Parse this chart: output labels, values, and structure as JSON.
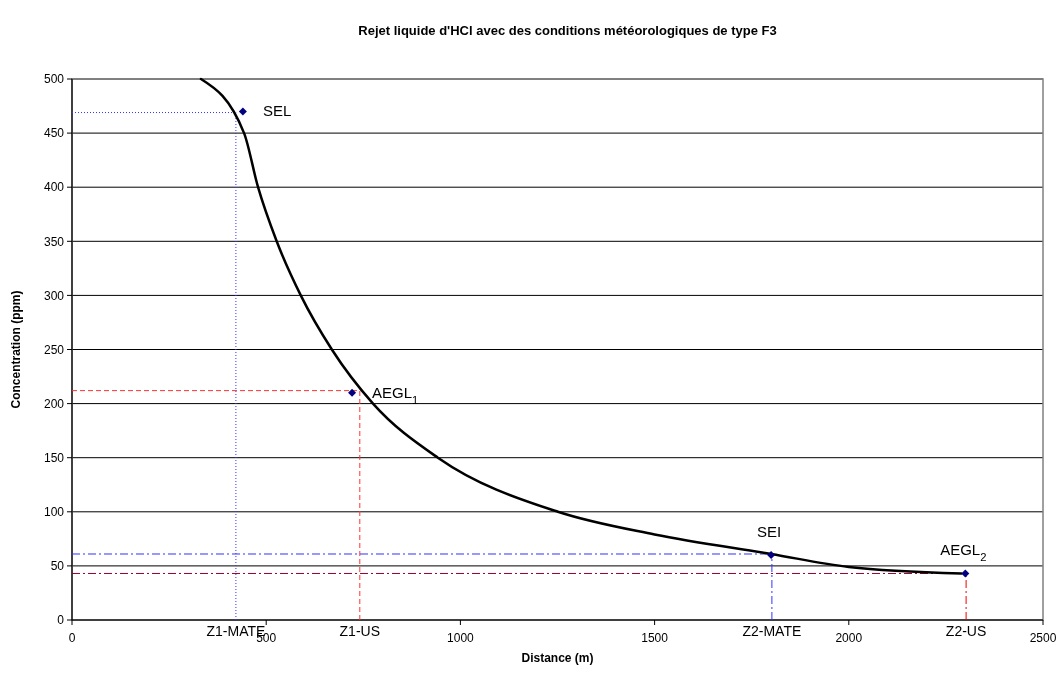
{
  "chart_data": {
    "type": "line",
    "title": "Rejet liquide d'HCl avec des conditions météorologiques de type F3",
    "xlabel": "Distance (m)",
    "ylabel": "Concentration (ppm)",
    "xlim": [
      0,
      2500
    ],
    "xticks": [
      0,
      500,
      1000,
      1500,
      2000,
      2500
    ],
    "ylim": [
      0,
      500
    ],
    "yticks": [
      0,
      50,
      100,
      150,
      200,
      250,
      300,
      350,
      400,
      450,
      500
    ],
    "grid": "y",
    "series": [
      {
        "color": "#000000",
        "line_style": "solid",
        "marker": "none",
        "x": [
          332,
          443,
          479,
          527,
          589,
          669,
          775,
          942,
          1251,
          1500,
          1800,
          2000,
          2290
        ],
        "values": [
          500,
          450,
          400,
          350,
          300,
          250,
          200,
          150,
          100,
          79,
          61,
          49,
          43
        ]
      },
      {
        "type": "scatter",
        "color": "#000080",
        "marker": "diamond",
        "x": [
          440,
          721,
          1800,
          2300
        ],
        "values": [
          470,
          210,
          60,
          43
        ]
      }
    ],
    "ref_lines": [
      {
        "axis": "x",
        "value": 422,
        "label": "Z1-MATE",
        "color": "#3333ff",
        "line_style": "dotted"
      },
      {
        "axis": "y",
        "value": 469,
        "color": "#3333ff",
        "line_style": "dotted"
      },
      {
        "axis": "x",
        "value": 741,
        "label": "Z1-US",
        "color": "#ff3333",
        "line_style": "dashed"
      },
      {
        "axis": "y",
        "value": 212,
        "color": "#ff3333",
        "line_style": "dashed"
      },
      {
        "axis": "x",
        "value": 1802,
        "label": "Z2-MATE",
        "color": "#3333ff",
        "line_style": "dashdot"
      },
      {
        "axis": "y",
        "value": 61,
        "color": "#3333ff",
        "line_style": "dashdot"
      },
      {
        "axis": "x",
        "value": 2302,
        "label": "Z2-US",
        "color": "#ee0000",
        "line_style": "dashdot"
      },
      {
        "axis": "y",
        "value": 43,
        "color": "#990033",
        "line_style": "dashdot"
      }
    ],
    "annotations": [
      {
        "text": "SEL",
        "x": 440,
        "y": 470
      },
      {
        "text": "AEGL$_{1}$",
        "x": 721,
        "y": 210
      },
      {
        "text": "SEI",
        "x": 1800,
        "y": 60
      },
      {
        "text": "AEGL$_{2}$",
        "x": 2300,
        "y": 43
      }
    ]
  }
}
